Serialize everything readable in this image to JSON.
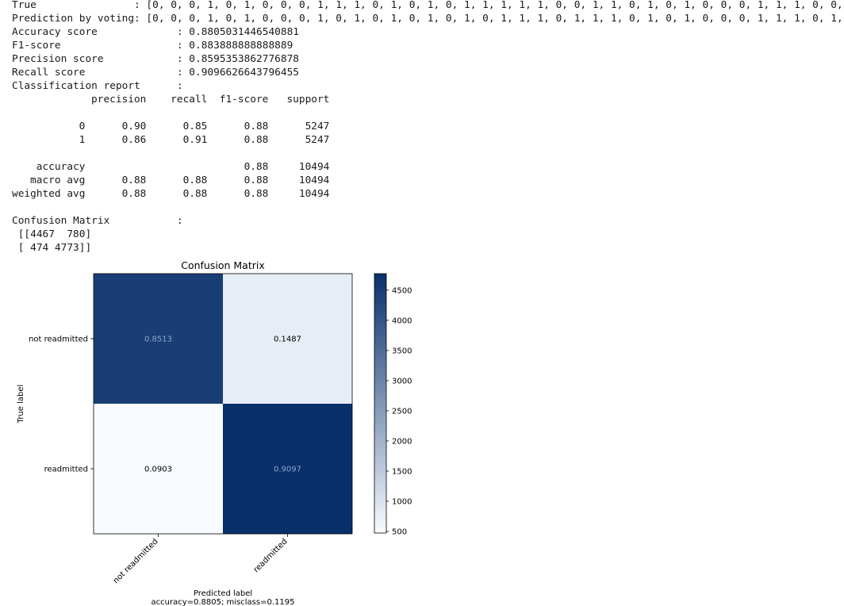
{
  "console": {
    "true_line": {
      "label": "True",
      "value": ": [0, 0, 0, 1, 0, 1, 0, 0, 0, 1, 1, 1, 0, 1, 0, 1, 0, 1, 1, 1, 1, 1, 0, 0, 1, 1, 0, 1, 0, 1, 0, 0, 0, 1, 1, 1, 0, 0,"
    },
    "pred_line": {
      "label": "Prediction by voting",
      "value": ": [0, 0, 0, 1, 0, 1, 0, 0, 0, 1, 0, 1, 0, 1, 0, 1, 0, 1, 0, 1, 1, 1, 0, 1, 1, 1, 0, 1, 0, 1, 0, 0, 0, 1, 1, 1, 0, 1,"
    },
    "accuracy": {
      "label": "Accuracy score",
      "value": ": 0.8805031446540881"
    },
    "f1": {
      "label": "F1-score",
      "value": ": 0.883888888888889"
    },
    "precision": {
      "label": "Precision score",
      "value": ": 0.8595353862776878"
    },
    "recall": {
      "label": "Recall score",
      "value": ": 0.9096626643796455"
    },
    "report": {
      "label": "Classification report",
      "value": ":"
    },
    "report_rows": [
      {
        "cells": [
          "",
          "precision",
          "recall",
          "f1-score",
          "support"
        ]
      },
      {
        "cells": [
          "",
          "",
          "",
          "",
          ""
        ]
      },
      {
        "cells": [
          "0",
          "0.90",
          "0.85",
          "0.88",
          "5247"
        ]
      },
      {
        "cells": [
          "1",
          "0.86",
          "0.91",
          "0.88",
          "5247"
        ]
      },
      {
        "cells": [
          "",
          "",
          "",
          "",
          ""
        ]
      },
      {
        "cells": [
          "accuracy",
          "",
          "",
          "0.88",
          "10494"
        ]
      },
      {
        "cells": [
          "macro avg",
          "0.88",
          "0.88",
          "0.88",
          "10494"
        ]
      },
      {
        "cells": [
          "weighted avg",
          "0.88",
          "0.88",
          "0.88",
          "10494"
        ]
      }
    ],
    "confusion": {
      "label": "Confusion Matrix",
      "value": ":"
    },
    "matrix_lines": [
      " [[4467  780]",
      " [ 474 4773]]"
    ]
  },
  "chart_data": {
    "type": "heatmap",
    "title": "Confusion Matrix",
    "xlabel": "Predicted label",
    "ylabel": "True label",
    "subtitle": "accuracy=0.8805; misclass=0.1195",
    "x_categories": [
      "not readmitted",
      "readmitted"
    ],
    "y_categories": [
      "not readmitted",
      "readmitted"
    ],
    "counts": [
      [
        4467,
        780
      ],
      [
        474,
        4773
      ]
    ],
    "cell_labels": [
      [
        "0.8513",
        "0.1487"
      ],
      [
        "0.0903",
        "0.9097"
      ]
    ],
    "colormap": "Blues",
    "colorbar_range": [
      474,
      4773
    ],
    "colorbar_ticks": [
      500,
      1000,
      1500,
      2000,
      2500,
      3000,
      3500,
      4000,
      4500
    ],
    "colors": {
      "low": "#f7fbff",
      "high": "#08306b",
      "dark_text": "#000000",
      "light_text": "#ffffff"
    }
  }
}
